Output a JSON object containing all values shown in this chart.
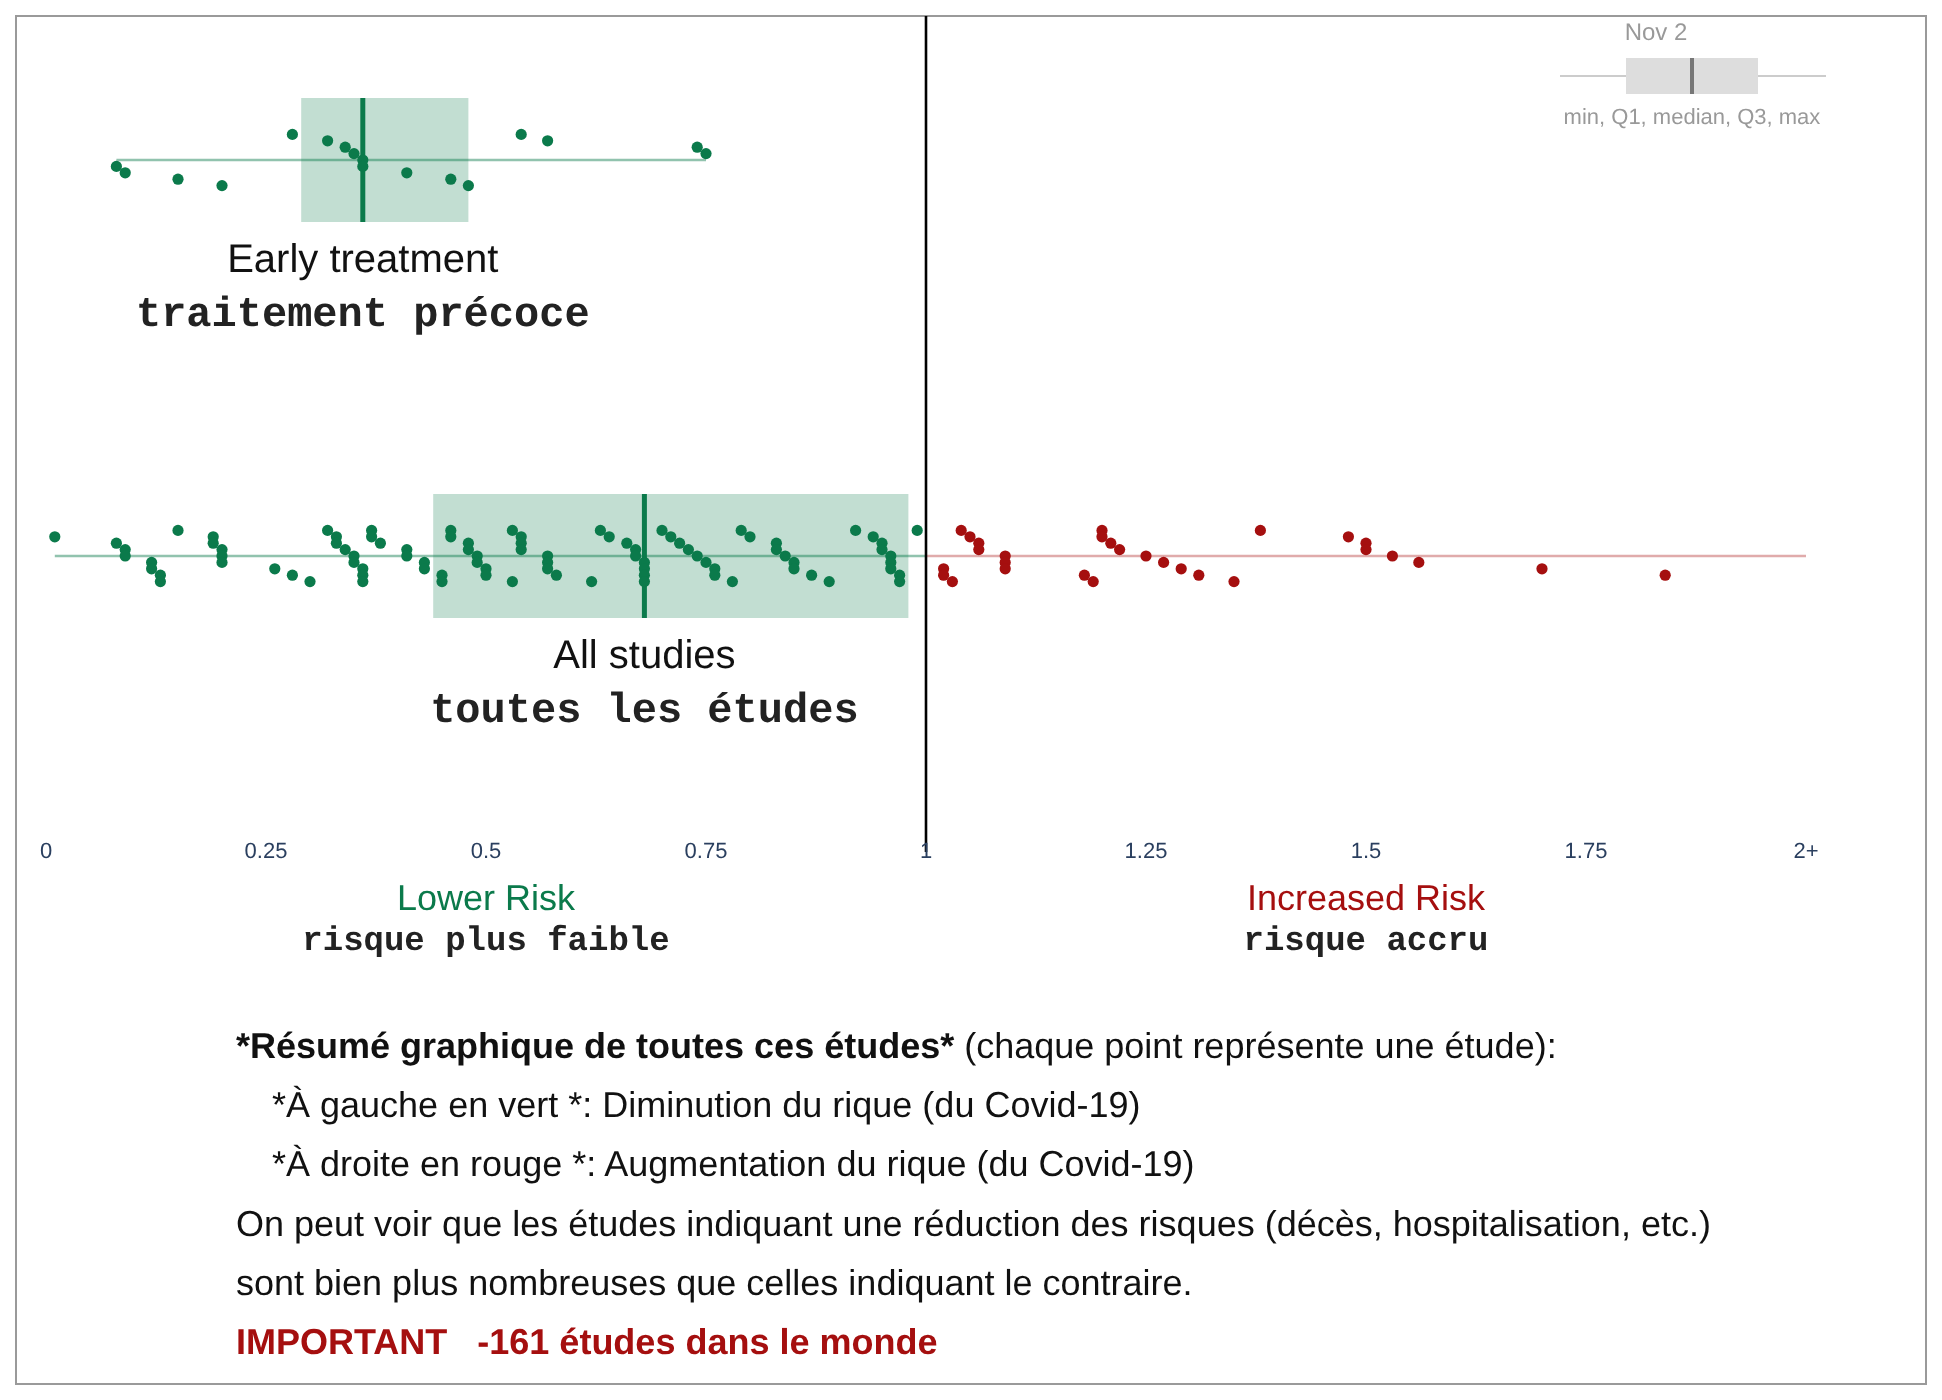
{
  "chart_data": {
    "type": "box",
    "orientation": "horizontal",
    "categories": [
      "Early treatment\ntraitement précoce",
      "All studies\ntoutes les études"
    ],
    "xlim": [
      0,
      2
    ],
    "xticks": [
      0,
      0.25,
      0.5,
      0.75,
      1,
      1.25,
      1.5,
      1.75,
      {
        "value": 2,
        "label": "2+"
      }
    ],
    "grid": false,
    "ref_lines": [
      {
        "axis": "x",
        "value": 1,
        "color": "#000000"
      }
    ],
    "series": [
      {
        "type": "box",
        "color": "#0b7a4b",
        "boxes": [
          {
            "low": 0.08,
            "q1": 0.29,
            "median": 0.36,
            "q3": 0.48,
            "high": 0.75
          },
          {
            "low": 0.01,
            "q1": 0.44,
            "median": 0.68,
            "q3": 0.98,
            "high": 2
          }
        ]
      },
      {
        "type": "scatter",
        "color": "#0b7a4b",
        "x": [
          "Early treatment\ntraitement précoce",
          "Early treatment\ntraitement précoce",
          "Early treatment\ntraitement précoce",
          "Early treatment\ntraitement précoce",
          "Early treatment\ntraitement précoce",
          "Early treatment\ntraitement précoce",
          "Early treatment\ntraitement précoce",
          "Early treatment\ntraitement précoce",
          "Early treatment\ntraitement précoce",
          "Early treatment\ntraitement précoce",
          "Early treatment\ntraitement précoce",
          "Early treatment\ntraitement précoce",
          "Early treatment\ntraitement précoce",
          "Early treatment\ntraitement précoce",
          "Early treatment\ntraitement précoce",
          "Early treatment\ntraitement précoce",
          "Early treatment\ntraitement précoce"
        ],
        "values": [
          0.08,
          0.09,
          0.15,
          0.2,
          0.28,
          0.32,
          0.34,
          0.35,
          0.36,
          0.36,
          0.41,
          0.46,
          0.48,
          0.54,
          0.57,
          0.74,
          0.75
        ]
      },
      {
        "type": "scatter",
        "color": "#0b7a4b",
        "x": [
          "All studies\ntoutes les études",
          "All studies\ntoutes les études",
          "All studies\ntoutes les études",
          "All studies\ntoutes les études",
          "All studies\ntoutes les études",
          "All studies\ntoutes les études",
          "All studies\ntoutes les études",
          "All studies\ntoutes les études",
          "All studies\ntoutes les études",
          "All studies\ntoutes les études",
          "All studies\ntoutes les études",
          "All studies\ntoutes les études",
          "All studies\ntoutes les études",
          "All studies\ntoutes les études",
          "All studies\ntoutes les études",
          "All studies\ntoutes les études",
          "All studies\ntoutes les études",
          "All studies\ntoutes les études",
          "All studies\ntoutes les études",
          "All studies\ntoutes les études",
          "All studies\ntoutes les études",
          "All studies\ntoutes les études",
          "All studies\ntoutes les études",
          "All studies\ntoutes les études",
          "All studies\ntoutes les études",
          "All studies\ntoutes les études",
          "All studies\ntoutes les études",
          "All studies\ntoutes les études",
          "All studies\ntoutes les études",
          "All studies\ntoutes les études",
          "All studies\ntoutes les études",
          "All studies\ntoutes les études",
          "All studies\ntoutes les études",
          "All studies\ntoutes les études",
          "All studies\ntoutes les études",
          "All studies\ntoutes les études",
          "All studies\ntoutes les études",
          "All studies\ntoutes les études",
          "All studies\ntoutes les études",
          "All studies\ntoutes les études",
          "All studies\ntoutes les études",
          "All studies\ntoutes les études",
          "All studies\ntoutes les études",
          "All studies\ntoutes les études",
          "All studies\ntoutes les études",
          "All studies\ntoutes les études",
          "All studies\ntoutes les études",
          "All studies\ntoutes les études",
          "All studies\ntoutes les études",
          "All studies\ntoutes les études",
          "All studies\ntoutes les études",
          "All studies\ntoutes les études",
          "All studies\ntoutes les études",
          "All studies\ntoutes les études",
          "All studies\ntoutes les études",
          "All studies\ntoutes les études",
          "All studies\ntoutes les études",
          "All studies\ntoutes les études",
          "All studies\ntoutes les études",
          "All studies\ntoutes les études",
          "All studies\ntoutes les études",
          "All studies\ntoutes les études",
          "All studies\ntoutes les études",
          "All studies\ntoutes les études",
          "All studies\ntoutes les études",
          "All studies\ntoutes les études",
          "All studies\ntoutes les études",
          "All studies\ntoutes les études",
          "All studies\ntoutes les études",
          "All studies\ntoutes les études",
          "All studies\ntoutes les études",
          "All studies\ntoutes les études",
          "All studies\ntoutes les études",
          "All studies\ntoutes les études",
          "All studies\ntoutes les études",
          "All studies\ntoutes les études",
          "All studies\ntoutes les études",
          "All studies\ntoutes les études",
          "All studies\ntoutes les études",
          "All studies\ntoutes les études",
          "All studies\ntoutes les études",
          "All studies\ntoutes les études",
          "All studies\ntoutes les études",
          "All studies\ntoutes les études",
          "All studies\ntoutes les études",
          "All studies\ntoutes les études",
          "All studies\ntoutes les études",
          "All studies\ntoutes les études",
          "All studies\ntoutes les études",
          "All studies\ntoutes les études"
        ],
        "values": [
          0.01,
          0.08,
          0.09,
          0.09,
          0.12,
          0.12,
          0.13,
          0.13,
          0.15,
          0.19,
          0.19,
          0.2,
          0.2,
          0.2,
          0.26,
          0.28,
          0.3,
          0.32,
          0.33,
          0.33,
          0.34,
          0.35,
          0.35,
          0.36,
          0.36,
          0.36,
          0.37,
          0.37,
          0.38,
          0.41,
          0.41,
          0.43,
          0.43,
          0.45,
          0.45,
          0.46,
          0.46,
          0.48,
          0.48,
          0.49,
          0.49,
          0.5,
          0.5,
          0.53,
          0.53,
          0.54,
          0.54,
          0.54,
          0.57,
          0.57,
          0.57,
          0.58,
          0.62,
          0.63,
          0.64,
          0.66,
          0.67,
          0.67,
          0.68,
          0.68,
          0.68,
          0.68,
          0.7,
          0.71,
          0.72,
          0.73,
          0.74,
          0.75,
          0.76,
          0.76,
          0.78,
          0.79,
          0.8,
          0.83,
          0.83,
          0.84,
          0.85,
          0.85,
          0.87,
          0.89,
          0.92,
          0.94,
          0.95,
          0.95,
          0.96,
          0.96,
          0.96,
          0.97,
          0.97,
          0.99
        ]
      },
      {
        "type": "scatter",
        "color": "#a50f0f",
        "x": [
          "All studies\ntoutes les études",
          "All studies\ntoutes les études",
          "All studies\ntoutes les études",
          "All studies\ntoutes les études",
          "All studies\ntoutes les études",
          "All studies\ntoutes les études",
          "All studies\ntoutes les études",
          "All studies\ntoutes les études",
          "All studies\ntoutes les études",
          "All studies\ntoutes les études",
          "All studies\ntoutes les études",
          "All studies\ntoutes les études",
          "All studies\ntoutes les études",
          "All studies\ntoutes les études",
          "All studies\ntoutes les études",
          "All studies\ntoutes les études",
          "All studies\ntoutes les études",
          "All studies\ntoutes les études",
          "All studies\ntoutes les études",
          "All studies\ntoutes les études",
          "All studies\ntoutes les études",
          "All studies\ntoutes les études",
          "All studies\ntoutes les études",
          "All studies\ntoutes les études",
          "All studies\ntoutes les études",
          "All studies\ntoutes les études",
          "All studies\ntoutes les études",
          "All studies\ntoutes les études",
          "All studies\ntoutes les études"
        ],
        "values": [
          1.02,
          1.02,
          1.03,
          1.04,
          1.05,
          1.06,
          1.06,
          1.09,
          1.09,
          1.09,
          1.18,
          1.19,
          1.2,
          1.2,
          1.21,
          1.22,
          1.25,
          1.27,
          1.29,
          1.31,
          1.35,
          1.38,
          1.48,
          1.5,
          1.5,
          1.53,
          1.56,
          1.7,
          1.84
        ]
      }
    ],
    "annotations": [
      "Nov 2",
      "min, Q1, median, Q3, max",
      "Lower Risk",
      "risque plus faible",
      "Increased Risk",
      "risque accru",
      "*Résumé graphique de toutes ces études* (chaque point représente une étude):",
      "*À gauche en vert *: Diminution du rique (du Covid-19)",
      "*À droite en rouge *: Augmentation du rique (du Covid-19)",
      "On peut voir que les études indiquant une réduction des risques (décès, hospitalisation, etc.)",
      "sont bien plus nombreuses que celles indiquant le contraire.",
      "IMPORTANT   -161 études dans le monde"
    ]
  }
}
